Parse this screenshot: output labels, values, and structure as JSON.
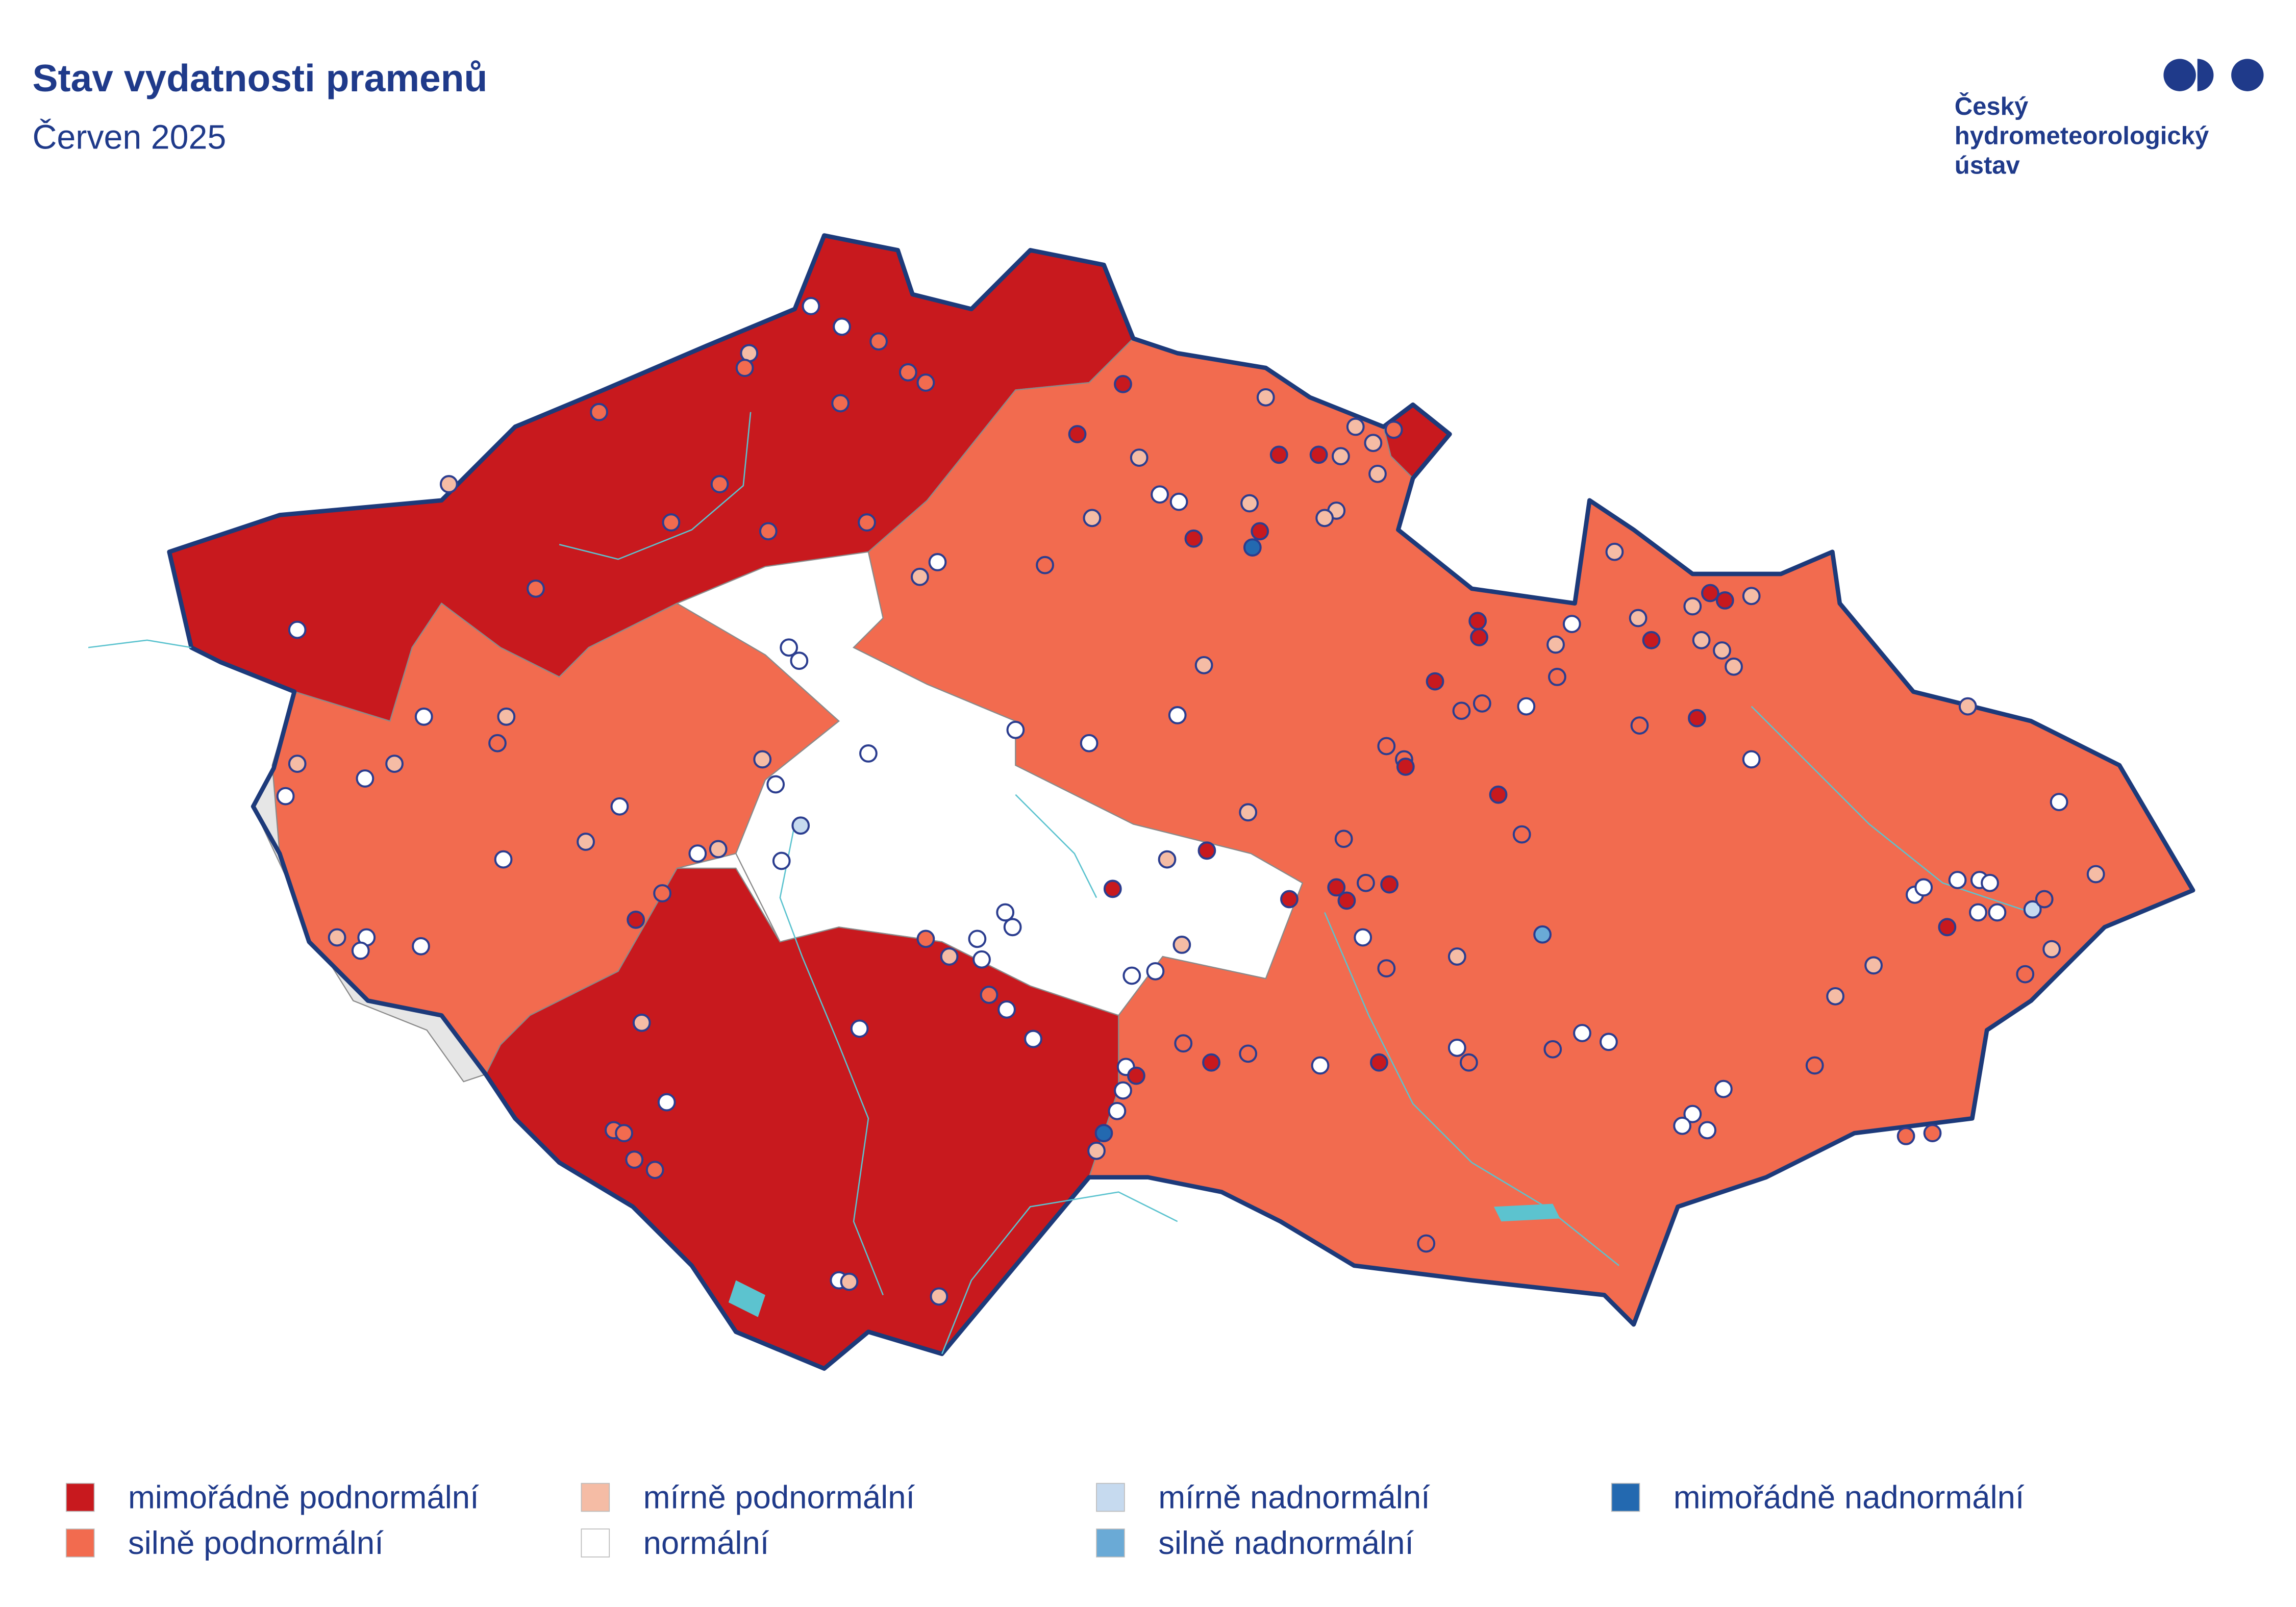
{
  "header": {
    "title": "Stav vydatnosti pramenů",
    "subtitle": "Červen 2025",
    "logo": [
      "Český",
      "hydrometeorologický",
      "ústav"
    ]
  },
  "legend": [
    {
      "label": "mimořádně podnormální",
      "color": "#c8191e"
    },
    {
      "label": "silně podnormální",
      "color": "#f26b4f"
    },
    {
      "label": "mírně podnormální",
      "color": "#f5bca5"
    },
    {
      "label": "normální",
      "color": "#ffffff"
    },
    {
      "label": "mírně nadnormální",
      "color": "#c6daef"
    },
    {
      "label": "silně nadnormální",
      "color": "#6aaad6"
    },
    {
      "label": "mimořádně nadnormální",
      "color": "#2369b0"
    }
  ]
}
